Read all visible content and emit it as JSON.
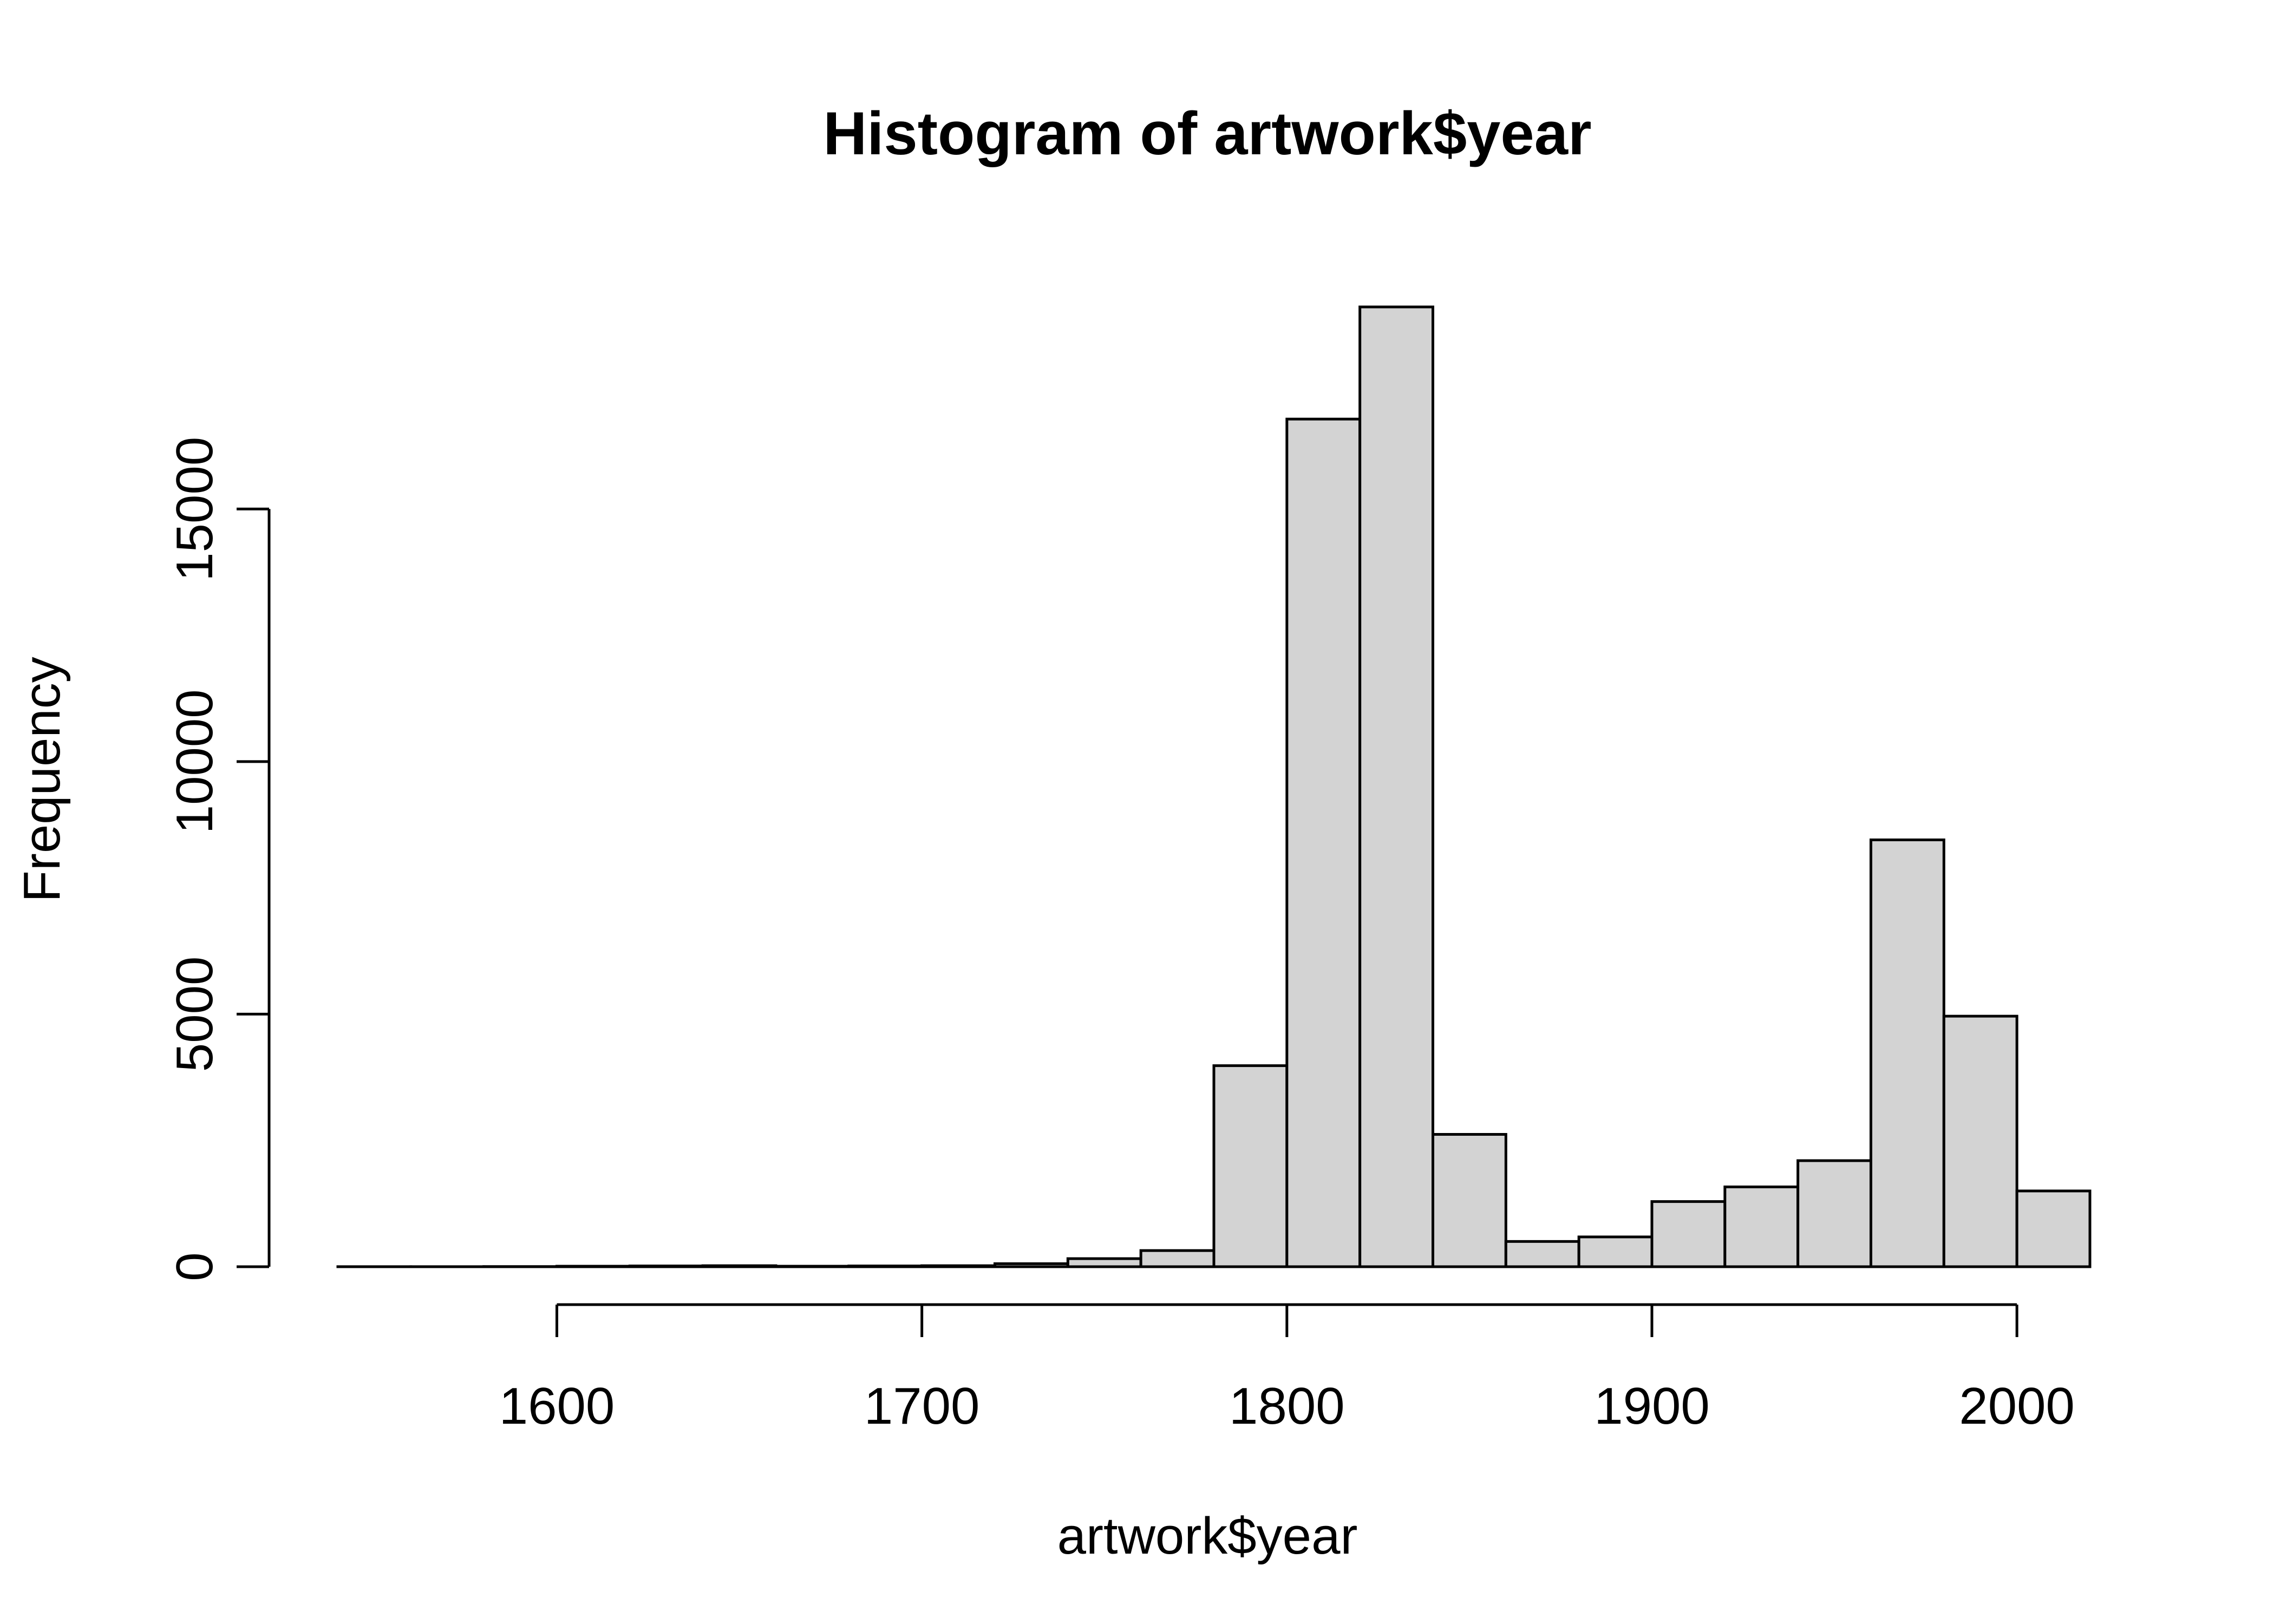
{
  "chart_data": {
    "type": "bar",
    "title": "Histogram of artwork$year",
    "xlabel": "artwork$year",
    "ylabel": "Frequency",
    "bin_width": 20,
    "bins": [
      {
        "start": 1540,
        "end": 1560,
        "count": 1
      },
      {
        "start": 1560,
        "end": 1580,
        "count": 1
      },
      {
        "start": 1580,
        "end": 1600,
        "count": 3
      },
      {
        "start": 1600,
        "end": 1620,
        "count": 10
      },
      {
        "start": 1620,
        "end": 1640,
        "count": 15
      },
      {
        "start": 1640,
        "end": 1660,
        "count": 20
      },
      {
        "start": 1660,
        "end": 1680,
        "count": 10
      },
      {
        "start": 1680,
        "end": 1700,
        "count": 15
      },
      {
        "start": 1700,
        "end": 1720,
        "count": 20
      },
      {
        "start": 1720,
        "end": 1740,
        "count": 60
      },
      {
        "start": 1740,
        "end": 1760,
        "count": 160
      },
      {
        "start": 1760,
        "end": 1780,
        "count": 320
      },
      {
        "start": 1780,
        "end": 1800,
        "count": 3980
      },
      {
        "start": 1800,
        "end": 1820,
        "count": 16780
      },
      {
        "start": 1820,
        "end": 1840,
        "count": 19000
      },
      {
        "start": 1840,
        "end": 1860,
        "count": 2620
      },
      {
        "start": 1860,
        "end": 1880,
        "count": 500
      },
      {
        "start": 1880,
        "end": 1900,
        "count": 590
      },
      {
        "start": 1900,
        "end": 1920,
        "count": 1290
      },
      {
        "start": 1920,
        "end": 1940,
        "count": 1580
      },
      {
        "start": 1940,
        "end": 1960,
        "count": 2100
      },
      {
        "start": 1960,
        "end": 1980,
        "count": 8450
      },
      {
        "start": 1980,
        "end": 2000,
        "count": 4960
      },
      {
        "start": 2000,
        "end": 2020,
        "count": 1500
      }
    ],
    "xlim": [
      1540,
      2020
    ],
    "ylim": [
      0,
      19000
    ],
    "x_ticks": [
      1600,
      1700,
      1800,
      1900,
      2000
    ],
    "y_ticks": [
      0,
      5000,
      10000,
      15000
    ],
    "grid": false,
    "colors": {
      "bar_fill": "#d3d3d3",
      "bar_stroke": "#000000"
    }
  }
}
